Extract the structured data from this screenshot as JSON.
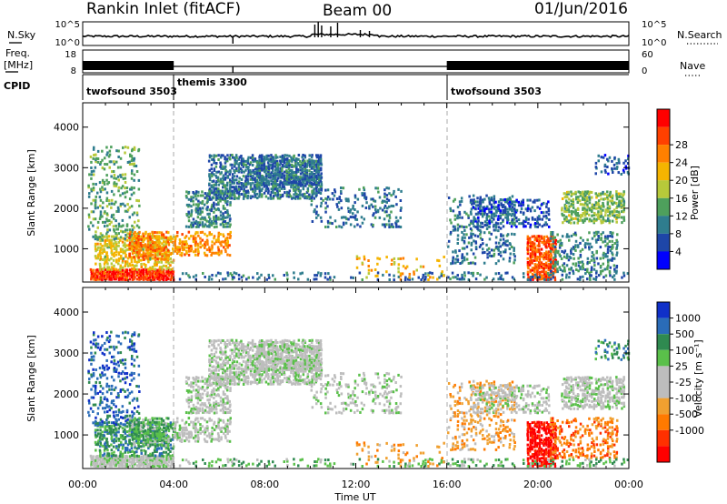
{
  "header": {
    "title": "Rankin Inlet (fitACF)",
    "beam": "Beam 00",
    "date": "01/Jun/2016"
  },
  "strip": {
    "nsky_label": "N.Sky",
    "nsky_ticks": [
      "10^5",
      "10^0"
    ],
    "nsearch_label": "N.Search",
    "nsearch_ticks": [
      "10^5",
      "10^0"
    ],
    "freq_label_1": "Freq.",
    "freq_label_2": "[MHz]",
    "freq_ticks": [
      "18",
      "8"
    ],
    "nave_label": "Nave",
    "nave_ticks": [
      "60",
      "0"
    ],
    "cpid_label": "CPID",
    "cpid_segments": [
      {
        "name": "twofsound 3503",
        "start_h": 0,
        "end_h": 4.0
      },
      {
        "name": "themis 3300",
        "start_h": 4.0,
        "end_h": 16.0
      },
      {
        "name": "twofsound 3503",
        "start_h": 16.0,
        "end_h": 24.0
      }
    ]
  },
  "x_axis": {
    "label": "Time UT",
    "ticks": [
      "00:00",
      "04:00",
      "08:00",
      "12:00",
      "16:00",
      "20:00",
      "00:00"
    ],
    "range_h": [
      0,
      24
    ]
  },
  "colors": {
    "power_scale": [
      "#0000ff",
      "#1e46a8",
      "#2f7d8e",
      "#4ea05c",
      "#b7c93a",
      "#f5b400",
      "#ff8000",
      "#ff4000",
      "#ff0000"
    ],
    "velocity_scale": [
      "#1030c8",
      "#2a6cb8",
      "#2f8a50",
      "#5ac04a",
      "#bdbdbd",
      "#bdbdbd",
      "#f0a030",
      "#ff7a00",
      "#ff3000",
      "#ff0000"
    ]
  },
  "chart_data": [
    {
      "type": "heatmap",
      "ylabel": "Slant Range [km]",
      "ylim": [
        180,
        4600
      ],
      "yticks": [
        "1000",
        "2000",
        "3000",
        "4000"
      ],
      "yticks_values": [
        1000,
        2000,
        3000,
        4000
      ],
      "colorbar_label": "Power [dB]",
      "colorbar_ticks": [
        "4",
        "8",
        "12",
        "16",
        "20",
        "24",
        "28"
      ],
      "colorbar_range": [
        0,
        32
      ]
    },
    {
      "type": "heatmap",
      "ylabel": "Slant Range [km]",
      "ylim": [
        180,
        4600
      ],
      "yticks": [
        "1000",
        "2000",
        "3000",
        "4000"
      ],
      "yticks_values": [
        1000,
        2000,
        3000,
        4000
      ],
      "colorbar_label": "Velocity [m s⁻¹]",
      "colorbar_ticks": [
        "1000",
        "500",
        "100",
        "25",
        "-25",
        "-100",
        "-500",
        "-1000"
      ]
    }
  ]
}
